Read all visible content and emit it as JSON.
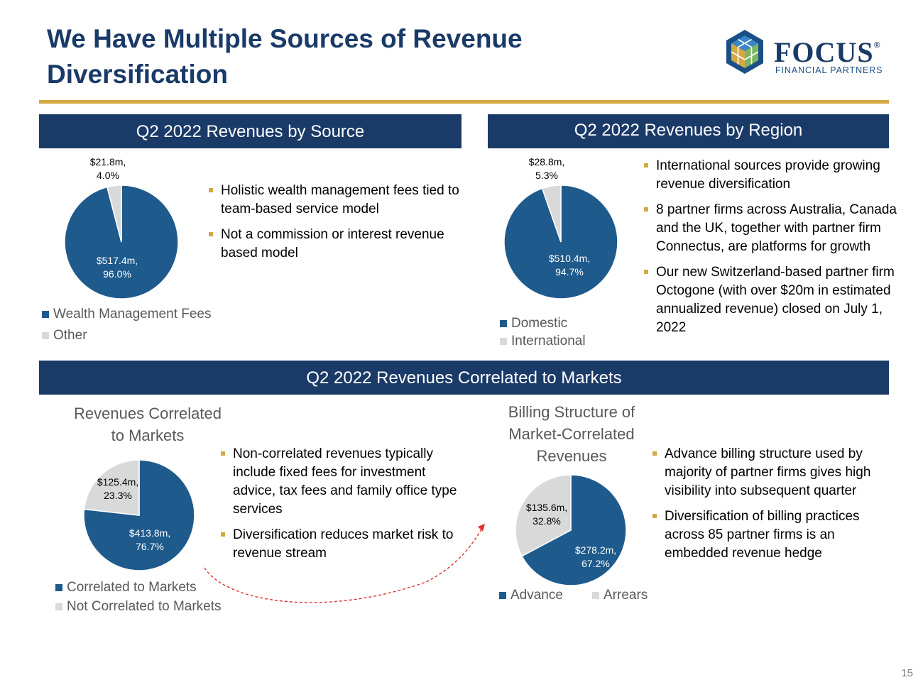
{
  "title": "We Have Multiple Sources of Revenue Diversification",
  "logo": {
    "word": "FOCUS",
    "reg": "®",
    "sub": "FINANCIAL PARTNERS",
    "icon": "hexagon-cube-logo-icon"
  },
  "colors": {
    "navy": "#1a3a68",
    "blue": "#1e5a8c",
    "gray": "#d9d9d9",
    "gold": "#d4a843"
  },
  "page_number": "15",
  "source": {
    "header": "Q2 2022 Revenues by Source",
    "bullets": [
      "Holistic wealth management fees tied to team-based service model",
      "Not a commission or interest revenue based model"
    ]
  },
  "region": {
    "header": "Q2 2022 Revenues by Region",
    "bullets": [
      "International sources provide growing revenue diversification",
      "8 partner firms across Australia, Canada and the UK, together with partner firm Connectus, are platforms for growth",
      "Our new Switzerland-based partner firm Octogone (with over $20m in estimated annualized revenue) closed on July 1, 2022"
    ]
  },
  "markets": {
    "header": "Q2 2022 Revenues Correlated to Markets",
    "bullets_left": [
      "Non-correlated revenues typically include fixed fees for investment advice, tax fees and family office type services",
      "Diversification reduces market risk to revenue stream"
    ],
    "bullets_right": [
      "Advance billing structure used by majority of partner firms gives high visibility into subsequent quarter",
      "Diversification of billing practices across 85 partner firms is an embedded revenue hedge"
    ]
  },
  "chart_data": [
    {
      "type": "pie",
      "title": "Q2 2022 Revenues by Source",
      "slices": [
        {
          "name": "Wealth Management Fees",
          "value": 517.4,
          "pct": 96.0,
          "label_1": "$517.4m,",
          "label_2": "96.0%",
          "color": "#1e5a8c"
        },
        {
          "name": "Other",
          "value": 21.8,
          "pct": 4.0,
          "label_1": "$21.8m,",
          "label_2": "4.0%",
          "color": "#d9d9d9"
        }
      ]
    },
    {
      "type": "pie",
      "title": "Q2 2022 Revenues by Region",
      "slices": [
        {
          "name": "Domestic",
          "value": 510.4,
          "pct": 94.7,
          "label_1": "$510.4m,",
          "label_2": "94.7%",
          "color": "#1e5a8c"
        },
        {
          "name": "International",
          "value": 28.8,
          "pct": 5.3,
          "label_1": "$28.8m,",
          "label_2": "5.3%",
          "color": "#d9d9d9"
        }
      ]
    },
    {
      "type": "pie",
      "title": "Revenues Correlated to Markets",
      "title_1": "Revenues Correlated",
      "title_2": "to Markets",
      "slices": [
        {
          "name": "Correlated to Markets",
          "value": 413.8,
          "pct": 76.7,
          "label_1": "$413.8m,",
          "label_2": "76.7%",
          "color": "#1e5a8c"
        },
        {
          "name": "Not Correlated to Markets",
          "value": 125.4,
          "pct": 23.3,
          "label_1": "$125.4m,",
          "label_2": "23.3%",
          "color": "#d9d9d9"
        }
      ]
    },
    {
      "type": "pie",
      "title": "Billing Structure of Market-Correlated Revenues",
      "title_1": "Billing Structure of",
      "title_2": "Market-Correlated",
      "title_3": "Revenues",
      "slices": [
        {
          "name": "Advance",
          "value": 278.2,
          "pct": 67.2,
          "label_1": "$278.2m,",
          "label_2": "67.2%",
          "color": "#1e5a8c"
        },
        {
          "name": "Arrears",
          "value": 135.6,
          "pct": 32.8,
          "label_1": "$135.6m,",
          "label_2": "32.8%",
          "color": "#d9d9d9"
        }
      ]
    }
  ]
}
